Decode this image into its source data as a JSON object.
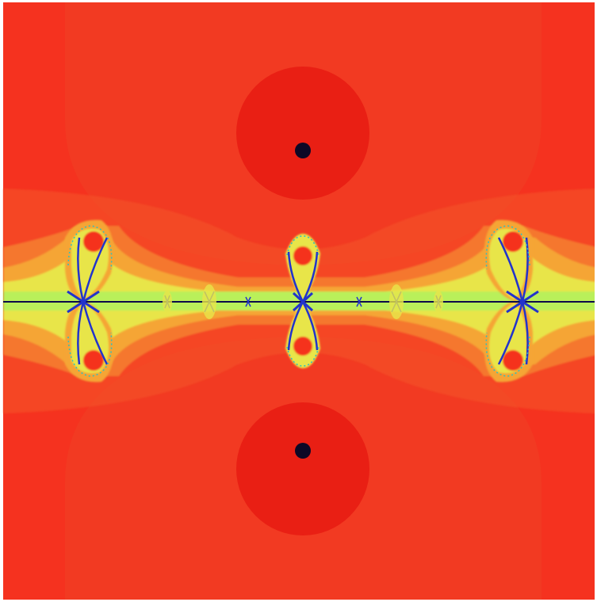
{
  "image": {
    "subject": "fractal",
    "colors": {
      "background": "#f5321f",
      "outer_glow": "#f23a22",
      "basin_dark": "#e91f14",
      "band_orange_1": "#f4582a",
      "band_orange_2": "#f5772e",
      "band_amber": "#f5a534",
      "band_yellow": "#e8e54a",
      "band_lime": "#b9f05a",
      "band_green": "#6fe07a",
      "filament_cyan": "#2fc0c0",
      "filament_blue": "#2233cc",
      "filament_dark": "#0b0b4a",
      "attractor_dot": "#0d0826"
    }
  }
}
